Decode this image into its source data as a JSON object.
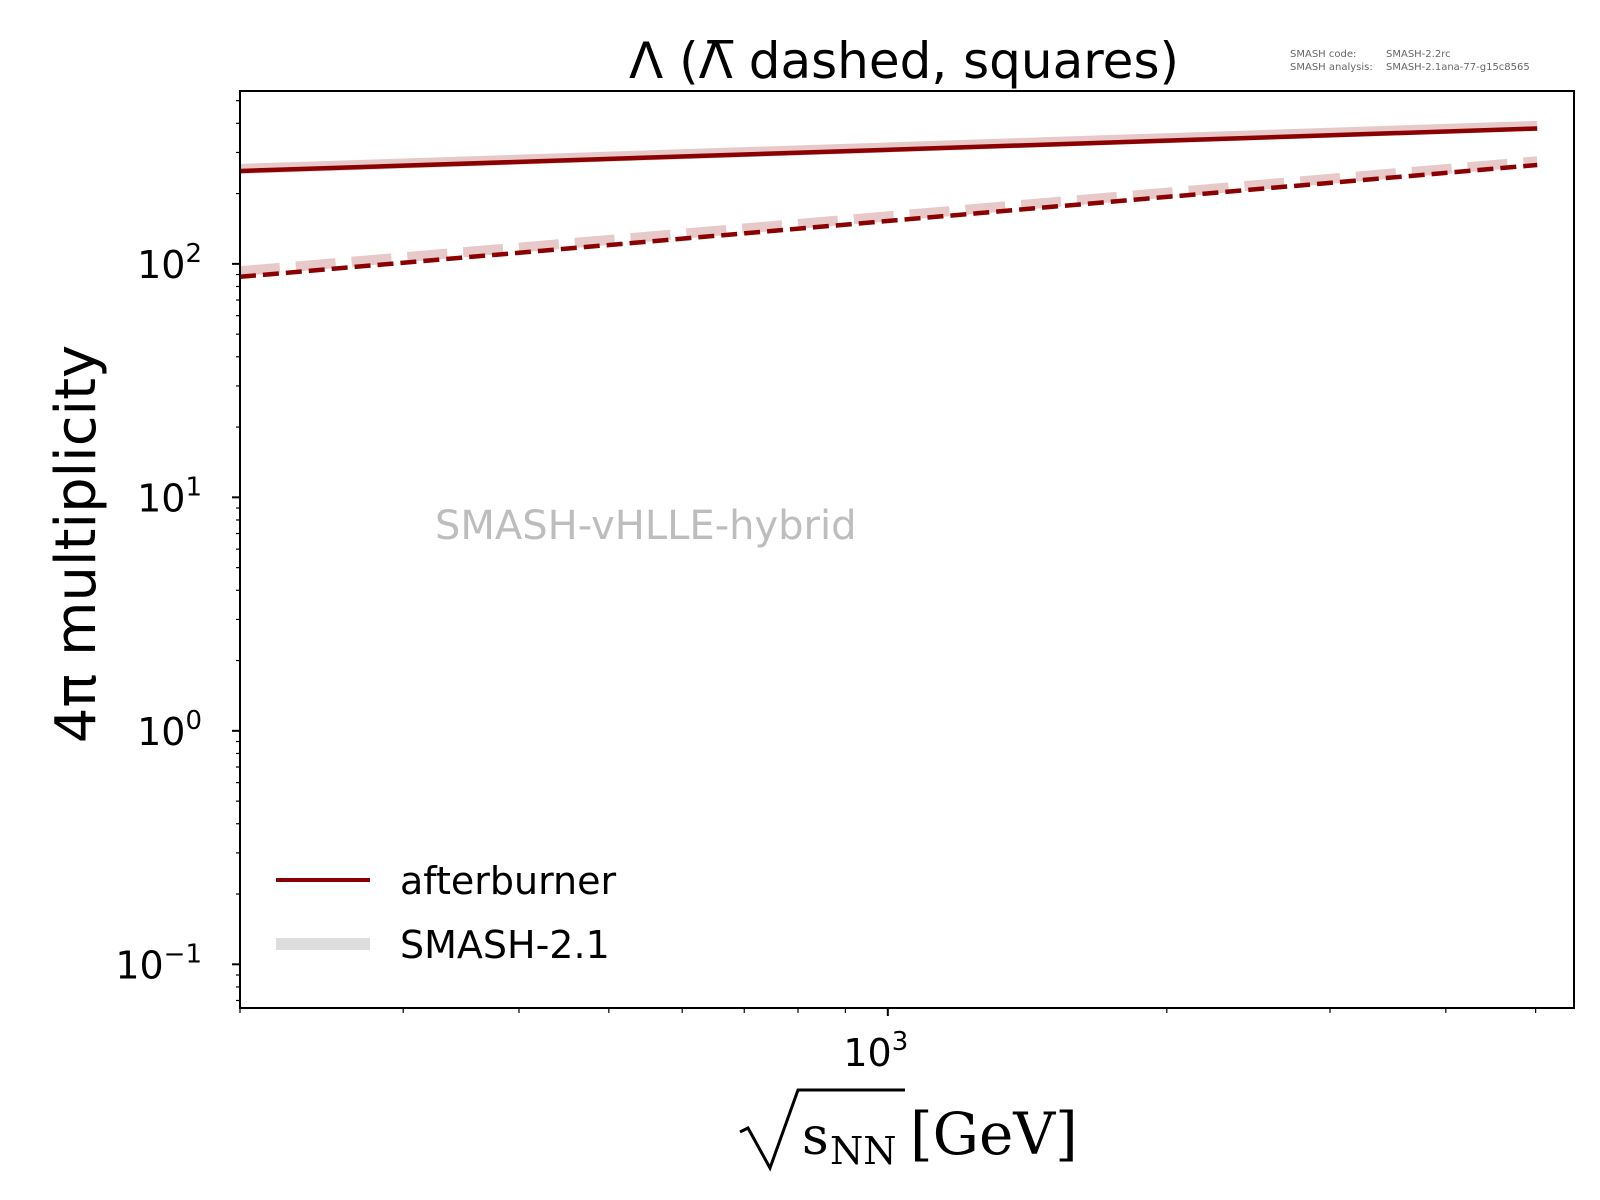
{
  "chart_data": {
    "type": "line",
    "title": "Λ (Λ̅ dashed, squares)",
    "xlabel": {
      "radical_body": "s",
      "subscript": "NN",
      "unit": "[GeV]"
    },
    "ylabel": "4π multiplicity",
    "xscale": "log",
    "yscale": "log",
    "xlim": [
      200,
      5500
    ],
    "ylim": [
      0.065,
      550
    ],
    "x_ticks": [
      {
        "value": 1000,
        "base": "10",
        "exp": "3"
      }
    ],
    "y_ticks": [
      {
        "value": 0.1,
        "base": "10",
        "exp": "−1"
      },
      {
        "value": 1,
        "base": "10",
        "exp": "0"
      },
      {
        "value": 10,
        "base": "10",
        "exp": "1"
      },
      {
        "value": 100,
        "base": "10",
        "exp": "2"
      }
    ],
    "grid": false,
    "legend_position": "lower-left",
    "annotation": "SMASH-vHLLE-hybrid",
    "version_info": [
      {
        "label": "SMASH code:",
        "value": "SMASH-2.2rc"
      },
      {
        "label": "SMASH analysis:",
        "value": "SMASH-2.1ana-77-g15c8565"
      }
    ],
    "legend": [
      {
        "name": "afterburner",
        "color": "#8b0000",
        "style": "solid-thin"
      },
      {
        "name": "SMASH-2.1",
        "color": "#dddddd",
        "style": "solid-thick"
      }
    ],
    "series": [
      {
        "name": "afterburner",
        "particle": "Λ",
        "dashed": false,
        "color": "#8b0000",
        "x": [
          200,
          5020
        ],
        "y": [
          250,
          380
        ]
      },
      {
        "name": "afterburner",
        "particle": "Λ̅",
        "dashed": true,
        "color": "#8b0000",
        "x": [
          200,
          5020
        ],
        "y": [
          88,
          265
        ]
      },
      {
        "name": "SMASH-2.1",
        "particle": "Λ",
        "dashed": false,
        "color": "#e7c9c9",
        "x": [
          200,
          5020
        ],
        "y": [
          255,
          390
        ]
      },
      {
        "name": "SMASH-2.1",
        "particle": "Λ̅",
        "dashed": true,
        "color": "#e7c9c9",
        "x": [
          200,
          5020
        ],
        "y": [
          93,
          275
        ]
      }
    ]
  }
}
